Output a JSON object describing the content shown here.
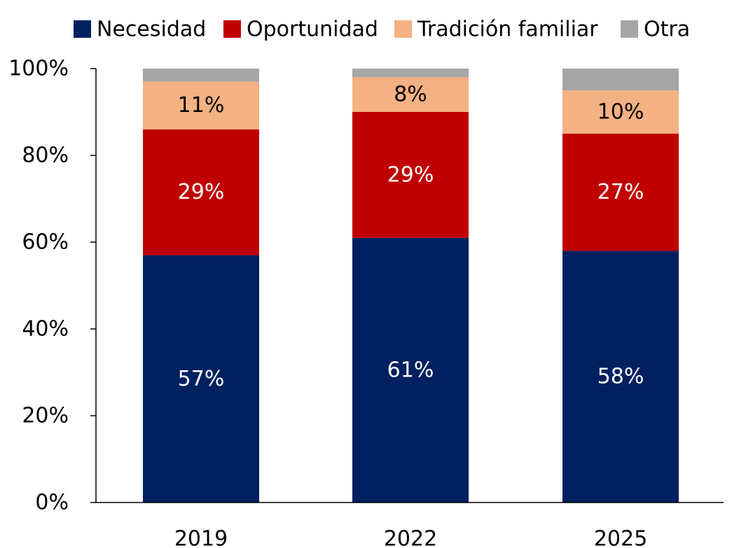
{
  "chart_data": {
    "type": "bar",
    "stacked": true,
    "categories": [
      "2019",
      "2022",
      "2025"
    ],
    "series": [
      {
        "name": "Necesidad",
        "color": "#002060",
        "label_color": "#ffffff",
        "values": [
          57,
          61,
          58
        ],
        "labels": [
          "57%",
          "61%",
          "58%"
        ]
      },
      {
        "name": "Oportunidad",
        "color": "#C00000",
        "label_color": "#ffffff",
        "values": [
          29,
          29,
          27
        ],
        "labels": [
          "29%",
          "29%",
          "27%"
        ]
      },
      {
        "name": "Tradición familiar",
        "color": "#F4B183",
        "label_color": "#000000",
        "values": [
          11,
          8,
          10
        ],
        "labels": [
          "11%",
          "8%",
          "10%"
        ]
      },
      {
        "name": "Otra",
        "color": "#A6A6A6",
        "label_color": "#000000",
        "values": [
          3,
          3,
          5
        ],
        "labels": [
          "",
          "",
          ""
        ]
      }
    ],
    "ylim": [
      0,
      100
    ],
    "yticks": [
      0,
      20,
      40,
      60,
      80,
      100
    ],
    "ytick_labels": [
      "0%",
      "20%",
      "40%",
      "60%",
      "80%",
      "100%"
    ],
    "legend_position": "top",
    "grid": false
  }
}
